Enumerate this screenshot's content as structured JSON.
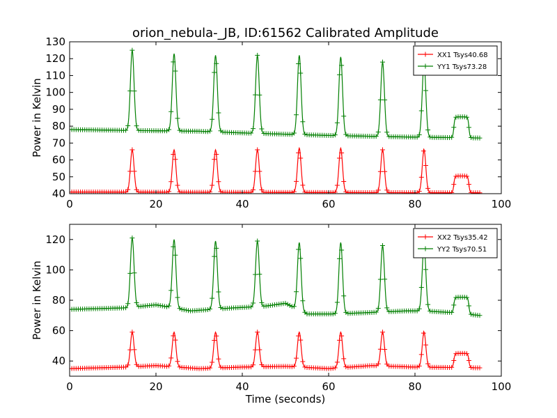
{
  "figure": {
    "title": "orion_nebula-_JB, ID:61562 Calibrated Amplitude"
  },
  "colors": {
    "red": "#ff0000",
    "green": "#007f00",
    "axes": "#000000"
  },
  "chart_data": [
    {
      "type": "line",
      "marker": "plus",
      "title": "orion_nebula-_JB, ID:61562 Calibrated Amplitude",
      "xlabel": "",
      "ylabel": "Power in Kelvin",
      "xlim": [
        0,
        100
      ],
      "ylim": [
        40,
        130
      ],
      "xticks": [
        "0",
        "20",
        "40",
        "60",
        "80",
        "100"
      ],
      "yticks": [
        "40",
        "50",
        "60",
        "70",
        "80",
        "90",
        "100",
        "110",
        "120",
        "130"
      ],
      "grid": false,
      "legend_position": "top-right",
      "peak_times": [
        14.5,
        24.2,
        33.8,
        43.5,
        53.2,
        62.8,
        72.5,
        82.1
      ],
      "series": [
        {
          "name": "XX1 Tsys40.68",
          "color": "#ff0000",
          "base": [
            [
              0,
              41
            ],
            [
              95,
              40.5
            ]
          ],
          "peak_values": [
            66,
            66,
            66,
            66,
            67,
            67,
            66,
            66
          ],
          "plateau": {
            "x_start": 89,
            "x_end": 92.5,
            "value": 50.5
          },
          "x_end": 95
        },
        {
          "name": "YY1 Tsys73.28",
          "color": "#007f00",
          "base": [
            [
              0,
              78
            ],
            [
              13,
              77.5
            ],
            [
              30,
              77
            ],
            [
              40,
              76
            ],
            [
              60,
              74.5
            ],
            [
              80,
              73.5
            ],
            [
              95,
              73
            ]
          ],
          "peak_values": [
            125,
            123,
            122,
            122,
            122,
            121,
            118,
            117
          ],
          "plateau": {
            "x_start": 89,
            "x_end": 92.5,
            "value": 85.5
          },
          "x_end": 95
        }
      ]
    },
    {
      "type": "line",
      "marker": "plus",
      "title": "",
      "xlabel": "Time (seconds)",
      "ylabel": "Power in Kelvin",
      "xlim": [
        0,
        100
      ],
      "ylim": [
        30,
        130
      ],
      "xticks": [
        "0",
        "20",
        "40",
        "60",
        "80",
        "100"
      ],
      "yticks": [
        "40",
        "60",
        "80",
        "100",
        "120"
      ],
      "grid": false,
      "legend_position": "top-right",
      "peak_times": [
        14.5,
        24.2,
        33.8,
        43.5,
        53.2,
        62.8,
        72.5,
        82.1
      ],
      "series": [
        {
          "name": "XX2 Tsys35.42",
          "color": "#ff0000",
          "base": [
            [
              0,
              35
            ],
            [
              13,
              36
            ],
            [
              20,
              37
            ],
            [
              30,
              35
            ],
            [
              40,
              36
            ],
            [
              50,
              36.5
            ],
            [
              60,
              35
            ],
            [
              70,
              37
            ],
            [
              80,
              36
            ],
            [
              95,
              35.5
            ]
          ],
          "peak_values": [
            59,
            59,
            59,
            59,
            59,
            59,
            59,
            59
          ],
          "plateau": {
            "x_start": 89,
            "x_end": 92.5,
            "value": 45
          },
          "x_end": 95
        },
        {
          "name": "YY2 Tsys70.51",
          "color": "#007f00",
          "base": [
            [
              0,
              74
            ],
            [
              13,
              75
            ],
            [
              20,
              77
            ],
            [
              28,
              73
            ],
            [
              38,
              75
            ],
            [
              45,
              76
            ],
            [
              50,
              78
            ],
            [
              55,
              71
            ],
            [
              62,
              71
            ],
            [
              70,
              72
            ],
            [
              78,
              73
            ],
            [
              82,
              73
            ],
            [
              88,
              72
            ],
            [
              95,
              70
            ]
          ],
          "peak_values": [
            121,
            120,
            119,
            119,
            118,
            118,
            116,
            116
          ],
          "plateau": {
            "x_start": 89,
            "x_end": 92.5,
            "value": 82
          },
          "x_end": 95
        }
      ]
    }
  ]
}
